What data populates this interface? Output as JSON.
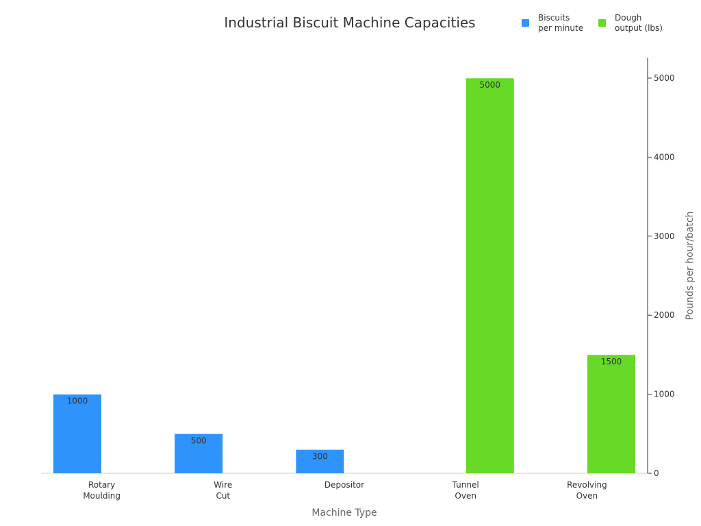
{
  "chart_data": {
    "type": "bar",
    "title": "Industrial Biscuit Machine Capacities",
    "xlabel": "Machine Type",
    "ylabel": "Pounds per hour/batch",
    "categories": [
      [
        "Rotary",
        "Moulding"
      ],
      [
        "Wire",
        "Cut"
      ],
      [
        "Depositor"
      ],
      [
        "Tunnel",
        "Oven"
      ],
      [
        "Revolving",
        "Oven"
      ]
    ],
    "series": [
      {
        "name": "Biscuits per minute",
        "color": "#2e93fa",
        "values": [
          1000,
          500,
          300,
          null,
          null
        ]
      },
      {
        "name": "Dough output (lbs)",
        "color": "#66da26",
        "values": [
          null,
          null,
          null,
          5000,
          1500
        ]
      }
    ],
    "ylim": [
      0,
      5000
    ],
    "yticks": [
      0,
      1000,
      2000,
      3000,
      4000,
      5000
    ],
    "y_axis_side": "right",
    "grid": false,
    "legend_position": "top-right"
  },
  "legend": {
    "items": [
      {
        "label": "Biscuits per minute",
        "color": "#2e93fa"
      },
      {
        "label": "Dough output (lbs)",
        "color": "#66da26"
      }
    ]
  }
}
